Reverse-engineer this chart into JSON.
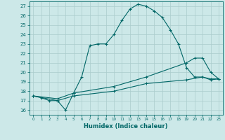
{
  "xlabel": "Humidex (Indice chaleur)",
  "ylabel": "",
  "bg_color": "#cce8e8",
  "grid_color": "#aacccc",
  "line_color": "#006666",
  "xlim": [
    -0.5,
    23.5
  ],
  "ylim": [
    15.5,
    27.5
  ],
  "yticks": [
    16,
    17,
    18,
    19,
    20,
    21,
    22,
    23,
    24,
    25,
    26,
    27
  ],
  "xticks": [
    0,
    1,
    2,
    3,
    4,
    5,
    6,
    7,
    8,
    9,
    10,
    11,
    12,
    13,
    14,
    15,
    16,
    17,
    18,
    19,
    20,
    21,
    22,
    23
  ],
  "line1_x": [
    0,
    1,
    2,
    3,
    4,
    5,
    6,
    7,
    8,
    9,
    10,
    11,
    12,
    13,
    14,
    15,
    16,
    17,
    18,
    19,
    20,
    21,
    22,
    23
  ],
  "line1_y": [
    17.5,
    17.3,
    17.0,
    17.0,
    16.0,
    17.8,
    19.5,
    22.8,
    23.0,
    23.0,
    24.0,
    25.5,
    26.7,
    27.2,
    27.0,
    26.5,
    25.8,
    24.5,
    23.0,
    20.5,
    19.5,
    19.5,
    19.2,
    19.3
  ],
  "line2_x": [
    0,
    3,
    5,
    10,
    14,
    19,
    20,
    21,
    22,
    23
  ],
  "line2_y": [
    17.5,
    17.2,
    17.8,
    18.5,
    19.5,
    21.0,
    21.5,
    21.5,
    20.0,
    19.3
  ],
  "line3_x": [
    0,
    3,
    5,
    10,
    14,
    19,
    21,
    22,
    23
  ],
  "line3_y": [
    17.5,
    17.0,
    17.5,
    18.0,
    18.8,
    19.2,
    19.5,
    19.3,
    19.3
  ]
}
